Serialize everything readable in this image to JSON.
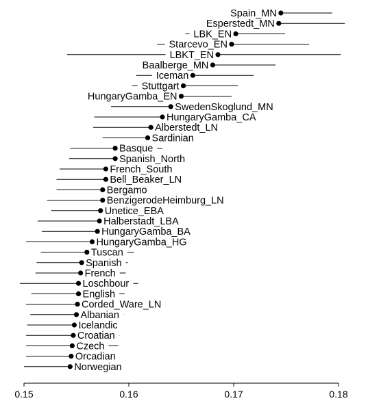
{
  "chart_data": {
    "type": "scatter",
    "variant": "dot-and-whisker",
    "title": "",
    "xlabel": "",
    "ylabel": "",
    "xlim": [
      0.15,
      0.18
    ],
    "x_ticks": [
      "0.15",
      "0.16",
      "0.17",
      "0.18"
    ],
    "grid": false,
    "colors": {
      "point": "#000000",
      "whisker": "#000000"
    },
    "points": [
      {
        "label": "Spain_MN",
        "value": 0.1745,
        "low": 0.1696,
        "high": 0.1794,
        "label_side": "left"
      },
      {
        "label": "Esperstedt_MN",
        "value": 0.1743,
        "low": 0.1681,
        "high": 0.1806,
        "label_side": "left"
      },
      {
        "label": "LBK_EN",
        "value": 0.1702,
        "low": 0.1654,
        "high": 0.1749,
        "label_side": "left"
      },
      {
        "label": "Starcevo_EN",
        "value": 0.1698,
        "low": 0.1627,
        "high": 0.1772,
        "label_side": "left"
      },
      {
        "label": "LBKT_EN",
        "value": 0.1685,
        "low": 0.1541,
        "high": 0.1802,
        "label_side": "left"
      },
      {
        "label": "Baalberge_MN",
        "value": 0.168,
        "low": 0.1627,
        "high": 0.174,
        "label_side": "left"
      },
      {
        "label": "Iceman",
        "value": 0.1661,
        "low": 0.1607,
        "high": 0.1719,
        "label_side": "left"
      },
      {
        "label": "Stuttgart",
        "value": 0.1652,
        "low": 0.1603,
        "high": 0.1704,
        "label_side": "left"
      },
      {
        "label": "HungaryGamba_EN",
        "value": 0.165,
        "low": 0.1602,
        "high": 0.1698,
        "label_side": "left"
      },
      {
        "label": "SwedenSkoglund_MN",
        "value": 0.164,
        "low": 0.1583,
        "high": 0.1698,
        "label_side": "right"
      },
      {
        "label": "HungaryGamba_CA",
        "value": 0.1632,
        "low": 0.1567,
        "high": 0.1697,
        "label_side": "right"
      },
      {
        "label": "Alberstedt_LN",
        "value": 0.1621,
        "low": 0.1566,
        "high": 0.1673,
        "label_side": "right"
      },
      {
        "label": "Sardinian",
        "value": 0.1618,
        "low": 0.1575,
        "high": 0.1662,
        "label_side": "right"
      },
      {
        "label": "Basque",
        "value": 0.1587,
        "low": 0.1544,
        "high": 0.1632,
        "label_side": "right"
      },
      {
        "label": "Spanish_North",
        "value": 0.1587,
        "low": 0.1543,
        "high": 0.1629,
        "label_side": "right"
      },
      {
        "label": "French_South",
        "value": 0.1578,
        "low": 0.1534,
        "high": 0.162,
        "label_side": "right"
      },
      {
        "label": "Bell_Beaker_LN",
        "value": 0.1578,
        "low": 0.1531,
        "high": 0.1625,
        "label_side": "right"
      },
      {
        "label": "Bergamo",
        "value": 0.1575,
        "low": 0.1531,
        "high": 0.1619,
        "label_side": "right"
      },
      {
        "label": "BenzigerodeHeimburg_LN",
        "value": 0.1575,
        "low": 0.1522,
        "high": 0.1627,
        "label_side": "right"
      },
      {
        "label": "Unetice_EBA",
        "value": 0.1573,
        "low": 0.1526,
        "high": 0.1621,
        "label_side": "right"
      },
      {
        "label": "Halberstadt_LBA",
        "value": 0.1572,
        "low": 0.1513,
        "high": 0.1633,
        "label_side": "right"
      },
      {
        "label": "HungaryGamba_BA",
        "value": 0.157,
        "low": 0.1517,
        "high": 0.1625,
        "label_side": "right"
      },
      {
        "label": "HungaryGamba_HG",
        "value": 0.1565,
        "low": 0.1502,
        "high": 0.1628,
        "label_side": "right"
      },
      {
        "label": "Tuscan",
        "value": 0.156,
        "low": 0.1516,
        "high": 0.1605,
        "label_side": "right"
      },
      {
        "label": "Spanish",
        "value": 0.1555,
        "low": 0.1512,
        "high": 0.1599,
        "label_side": "right"
      },
      {
        "label": "French",
        "value": 0.1554,
        "low": 0.1511,
        "high": 0.1597,
        "label_side": "right"
      },
      {
        "label": "Loschbour",
        "value": 0.1552,
        "low": 0.1496,
        "high": 0.1609,
        "label_side": "right"
      },
      {
        "label": "English",
        "value": 0.1552,
        "low": 0.1507,
        "high": 0.1596,
        "label_side": "right"
      },
      {
        "label": "Corded_Ware_LN",
        "value": 0.1551,
        "low": 0.1502,
        "high": 0.1601,
        "label_side": "right"
      },
      {
        "label": "Albanian",
        "value": 0.155,
        "low": 0.1506,
        "high": 0.1595,
        "label_side": "right"
      },
      {
        "label": "Icelandic",
        "value": 0.1548,
        "low": 0.1503,
        "high": 0.1593,
        "label_side": "right"
      },
      {
        "label": "Croatian",
        "value": 0.1547,
        "low": 0.1502,
        "high": 0.1591,
        "label_side": "right"
      },
      {
        "label": "Czech",
        "value": 0.1546,
        "low": 0.1502,
        "high": 0.159,
        "label_side": "right"
      },
      {
        "label": "Orcadian",
        "value": 0.1545,
        "low": 0.1502,
        "high": 0.1589,
        "label_side": "right"
      },
      {
        "label": "Norwegian",
        "value": 0.1544,
        "low": 0.15,
        "high": 0.1589,
        "label_side": "right"
      }
    ]
  }
}
